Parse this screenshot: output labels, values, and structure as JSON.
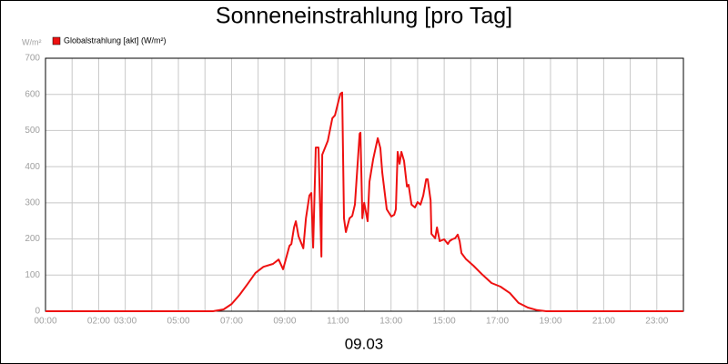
{
  "chart_data": {
    "type": "line",
    "title": "Sonneneinstrahlung [pro Tag]",
    "y_unit": "W/m²",
    "x_caption": "09.03",
    "xlim": [
      0,
      24
    ],
    "ylim": [
      0,
      700
    ],
    "yticks": [
      0,
      100,
      200,
      300,
      400,
      500,
      600,
      700
    ],
    "xticks": [
      {
        "value": 0,
        "label": "00:00"
      },
      {
        "value": 2,
        "label": "02:00"
      },
      {
        "value": 3,
        "label": "03:00"
      },
      {
        "value": 5,
        "label": "05:00"
      },
      {
        "value": 7,
        "label": "07:00"
      },
      {
        "value": 9,
        "label": "09:00"
      },
      {
        "value": 11,
        "label": "11:00"
      },
      {
        "value": 13,
        "label": "13:00"
      },
      {
        "value": 15,
        "label": "15:00"
      },
      {
        "value": 17,
        "label": "17:00"
      },
      {
        "value": 19,
        "label": "19:00"
      },
      {
        "value": 21,
        "label": "21:00"
      },
      {
        "value": 23,
        "label": "23:00"
      }
    ],
    "x_minor_grid": [
      1,
      4,
      6,
      8,
      10,
      12,
      14,
      16,
      18,
      20,
      22,
      24
    ],
    "grid": true,
    "legend": "top-left",
    "series": [
      {
        "name": "Globalstrahlung [akt] (W/m²)",
        "color": "#ee1111",
        "x": [
          0,
          6.3,
          6.7,
          7.0,
          7.3,
          7.6,
          7.9,
          8.2,
          8.56,
          8.77,
          8.94,
          9.18,
          9.25,
          9.35,
          9.42,
          9.52,
          9.7,
          9.8,
          9.93,
          10.0,
          10.07,
          10.17,
          10.27,
          10.38,
          10.41,
          10.62,
          10.79,
          10.89,
          11.03,
          11.1,
          11.16,
          11.23,
          11.3,
          11.44,
          11.54,
          11.64,
          11.82,
          11.85,
          11.92,
          11.99,
          12.12,
          12.19,
          12.33,
          12.5,
          12.6,
          12.67,
          12.84,
          13.01,
          13.12,
          13.18,
          13.25,
          13.32,
          13.39,
          13.49,
          13.6,
          13.66,
          13.77,
          13.9,
          14.0,
          14.11,
          14.21,
          14.32,
          14.38,
          14.49,
          14.52,
          14.66,
          14.73,
          14.83,
          15.0,
          15.14,
          15.2,
          15.3,
          15.41,
          15.51,
          15.58,
          15.65,
          15.82,
          16.1,
          16.44,
          16.78,
          17.12,
          17.47,
          17.8,
          18.15,
          18.49,
          18.84,
          24
        ],
        "values": [
          0,
          0,
          5,
          20,
          45,
          75,
          106,
          123,
          131,
          143,
          116,
          181,
          186,
          232,
          249,
          207,
          174,
          257,
          320,
          327,
          176,
          453,
          453,
          151,
          433,
          471,
          534,
          542,
          584,
          602,
          605,
          257,
          219,
          257,
          264,
          295,
          491,
          494,
          257,
          300,
          249,
          358,
          421,
          479,
          451,
          383,
          282,
          262,
          267,
          282,
          441,
          408,
          441,
          416,
          345,
          350,
          295,
          287,
          302,
          295,
          320,
          365,
          365,
          307,
          214,
          202,
          232,
          194,
          199,
          186,
          194,
          199,
          202,
          212,
          194,
          161,
          144,
          126,
          101,
          78,
          68,
          50,
          23,
          10,
          3,
          0,
          0
        ]
      }
    ]
  }
}
